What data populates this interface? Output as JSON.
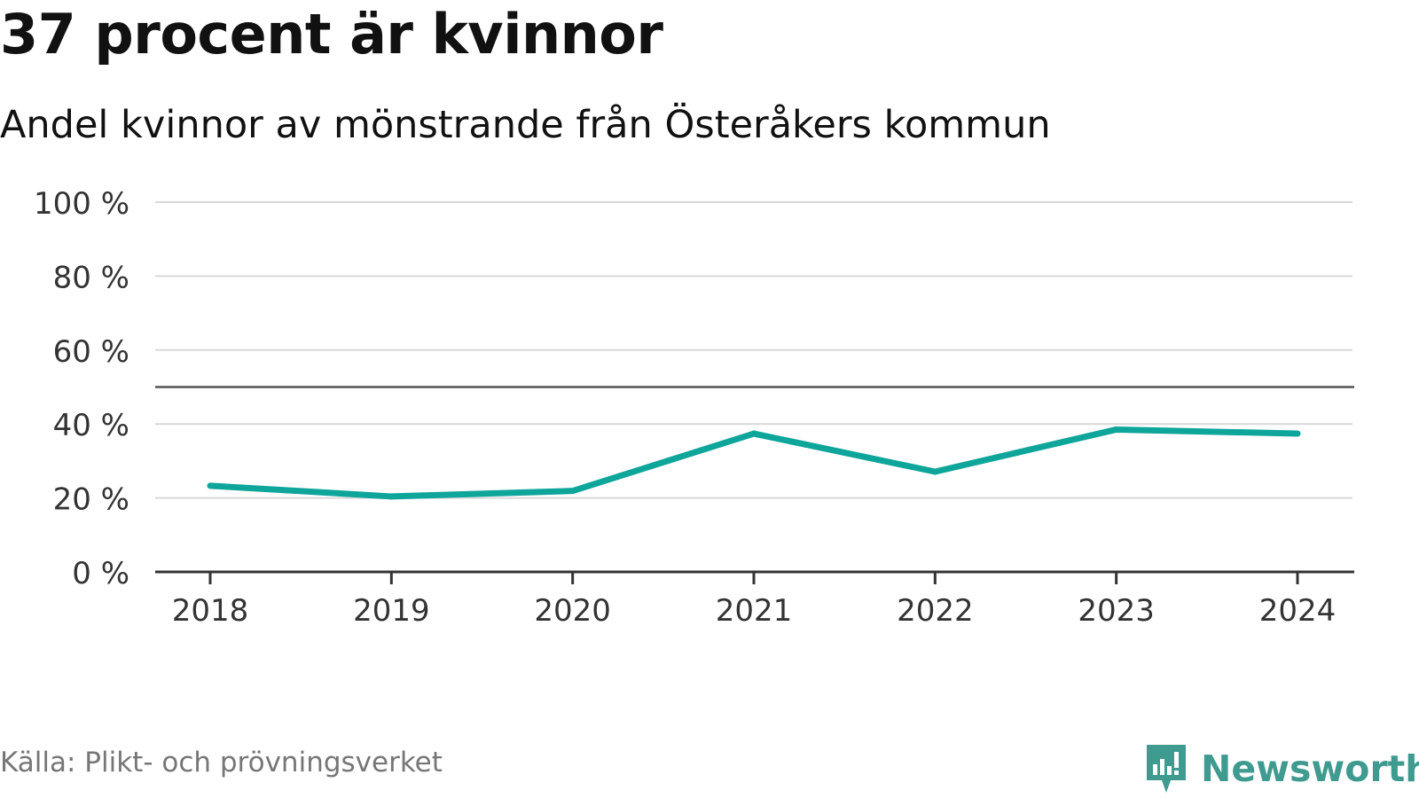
{
  "header": {
    "title": "37 procent är kvinnor",
    "subtitle": "Andel kvinnor av mönstrande från Österåkers kommun"
  },
  "footer": {
    "source": "Källa: Plikt- och prövningsverket",
    "brand": "Newsworthy",
    "brand_icon": "newsworthy-logo-icon",
    "brand_color": "#3f9a8f"
  },
  "chart_data": {
    "type": "line",
    "title": "37 procent är kvinnor",
    "subtitle": "Andel kvinnor av mönstrande från Österåkers kommun",
    "xlabel": "",
    "ylabel": "",
    "categories": [
      "2018",
      "2019",
      "2020",
      "2021",
      "2022",
      "2023",
      "2024"
    ],
    "series": [
      {
        "name": "Andel kvinnor",
        "values": [
          23.3,
          20.4,
          21.9,
          37.4,
          27.1,
          38.5,
          37.4
        ],
        "color": "#0ea59a"
      }
    ],
    "ylim": [
      0,
      100
    ],
    "yticks": [
      0,
      20,
      40,
      60,
      80,
      100
    ],
    "ytick_labels": [
      "0 %",
      "20 %",
      "40 %",
      "60 %",
      "80 %",
      "100 %"
    ],
    "reference_line": {
      "value": 50,
      "color": "#555555"
    },
    "grid": true,
    "legend": "none",
    "gridline_color": "#d9d9d9",
    "axis_color": "#333333"
  }
}
